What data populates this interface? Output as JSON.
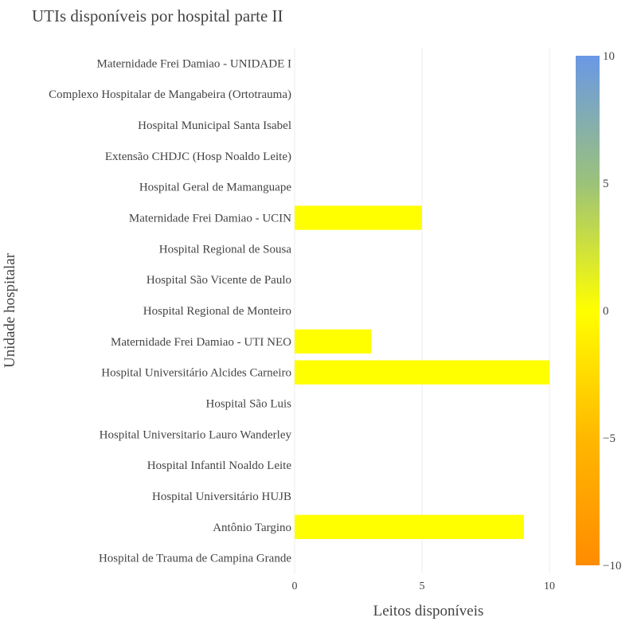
{
  "chart_data": {
    "type": "bar",
    "orientation": "horizontal",
    "title": "UTIs disponíveis por hospital parte II",
    "xlabel": "Leitos disponíveis",
    "ylabel": "Unidade hospitalar",
    "xlim": [
      0,
      10.5
    ],
    "x_ticks": [
      0,
      5,
      10
    ],
    "grid": true,
    "categories": [
      "Maternidade Frei Damiao - UNIDADE I",
      "Complexo Hospitalar de Mangabeira (Ortotrauma)",
      "Hospital Municipal Santa Isabel",
      "Extensão CHDJC (Hosp Noaldo Leite)",
      "Hospital Geral de Mamanguape",
      "Maternidade Frei Damiao - UCIN",
      "Hospital Regional de Sousa",
      "Hospital São Vicente de Paulo",
      "Hospital Regional de Monteiro",
      "Maternidade Frei Damiao - UTI NEO",
      "Hospital Universitário Alcides Carneiro",
      "Hospital São Luis",
      "Hospital Universitario Lauro Wanderley",
      "Hospital Infantil Noaldo Leite",
      "Hospital Universitário HUJB",
      "Antônio Targino",
      "Hospital de Trauma de Campina Grande"
    ],
    "values": [
      0,
      0,
      0,
      0,
      0,
      5,
      0,
      0,
      0,
      3,
      10,
      0,
      0,
      0,
      0,
      9,
      0
    ],
    "bar_color": "#ffff00",
    "colorbar": {
      "range": [
        -10,
        10
      ],
      "ticks": [
        10,
        5,
        0,
        -5,
        -10
      ],
      "tick_labels": [
        "10",
        "5",
        "0",
        "−5",
        "−10"
      ],
      "colors": [
        "#6a98e6",
        "#9cc27a",
        "#ffff00",
        "#ffb800",
        "#ff8c00"
      ]
    },
    "gridline_color": "#eeeeee"
  }
}
